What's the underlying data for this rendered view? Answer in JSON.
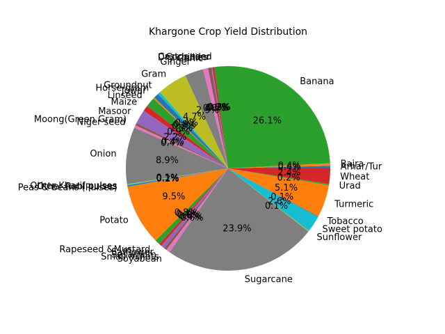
{
  "chart_data": {
    "type": "pie",
    "title": "Khargone Crop Yield Distribution",
    "start_angle_deg": 0,
    "direction": "counterclockwise",
    "categories": [
      "Arhar/Tur",
      "Bajra",
      "Banana",
      "Castor seed",
      "Coriander",
      "Dry chillies",
      "Garlic",
      "Ginger",
      "Gram",
      "Groundnut",
      "Horse-gram",
      "Jowar",
      "Linseed",
      "Maize",
      "Masoor",
      "Moong(Green Gram)",
      "Niger seed",
      "Onion",
      "Other Kharif pulses",
      "Other Rabi pulses",
      "Peas & beans (Pulses)",
      "Potato",
      "Rapeseed &Mustard",
      "Safflower",
      "Sesamum",
      "Small millets",
      "Soyabean",
      "Sugarcane",
      "Sunflower",
      "Sweet potato",
      "Tobacco",
      "Turmeric",
      "Urad",
      "Wheat"
    ],
    "values": [
      0.4,
      0.4,
      26.1,
      0.3,
      0.2,
      0.5,
      0.8,
      2.9,
      4.7,
      0.4,
      0.8,
      0.2,
      1.5,
      0.9,
      2.2,
      0.4,
      0.4,
      8.9,
      0.1,
      0.1,
      0.2,
      9.5,
      0.8,
      0.4,
      0.6,
      0.4,
      0.6,
      23.9,
      0.1,
      2.6,
      0.1,
      5.1,
      0.2,
      2.4
    ],
    "percent_labels": [
      "0.4%",
      "0.4%",
      "26.1%",
      "0.3%",
      "0.2%",
      "0.5%",
      "0.8%",
      "2.9%",
      "4.7%",
      "0.4%",
      "0.8%",
      "0.2%",
      "1.5%",
      "0.9%",
      "2.2%",
      "0.4%",
      "0.4%",
      "8.9%",
      "0.1%",
      "0.1%",
      "0.2%",
      "9.5%",
      "0.8%",
      "0.4%",
      "0.6%",
      "0.4%",
      "0.6%",
      "23.9%",
      "0.1%",
      "2.6%",
      "0.1%",
      "5.1%",
      "0.2%",
      "2.4%"
    ],
    "colors": [
      "#1f77b4",
      "#ff7f0e",
      "#2ca02c",
      "#d62728",
      "#9467bd",
      "#8c564b",
      "#e377c2",
      "#7f7f7f",
      "#bcbd22",
      "#17becf"
    ]
  }
}
